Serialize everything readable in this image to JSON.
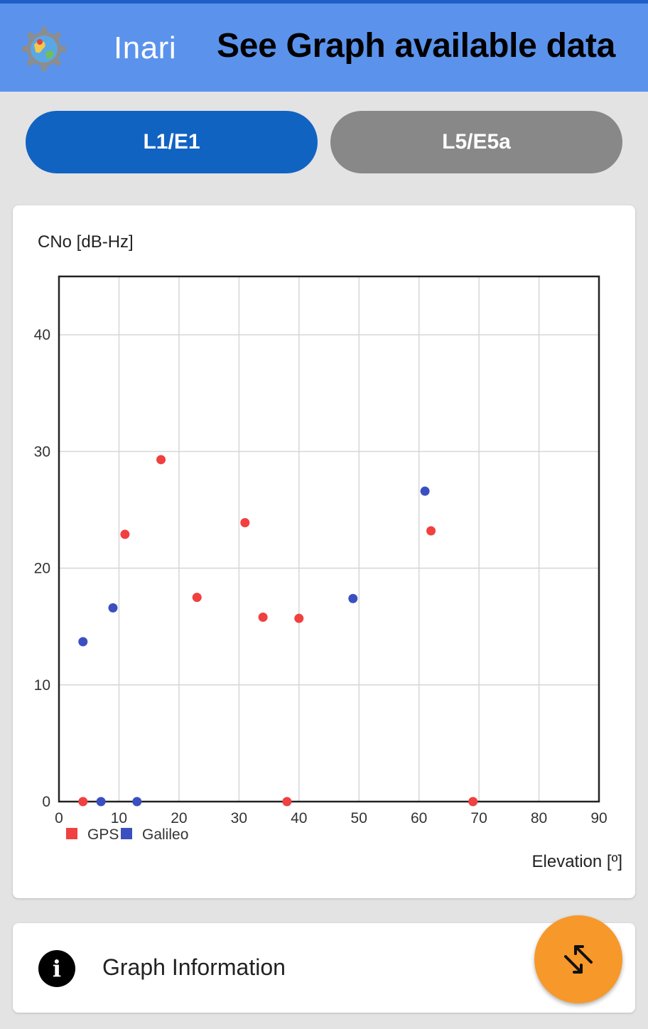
{
  "appbar": {
    "app_name": "Inari",
    "title": "See Graph available data",
    "color": "#5b93ec",
    "app_icon": "app-logo-gear-globe-icon"
  },
  "tabs": [
    {
      "label": "L1/E1",
      "selected": true,
      "color": "#1163c2"
    },
    {
      "label": "L5/E5a",
      "selected": false,
      "color": "#888888"
    }
  ],
  "chart_data": {
    "type": "scatter",
    "title": "",
    "ylabel": "CNo [dB-Hz]",
    "xlabel": "Elevation [º]",
    "xlim": [
      0,
      90
    ],
    "ylim": [
      0,
      45
    ],
    "xticks": [
      0,
      10,
      20,
      30,
      40,
      50,
      60,
      70,
      80,
      90
    ],
    "yticks": [
      0,
      10,
      20,
      30,
      40
    ],
    "grid": true,
    "legend_position": "bottom-left",
    "series": [
      {
        "name": "GPS",
        "color": "#f04040",
        "points": [
          [
            4,
            0
          ],
          [
            11,
            22.9
          ],
          [
            17,
            29.3
          ],
          [
            23,
            17.5
          ],
          [
            31,
            23.9
          ],
          [
            34,
            15.8
          ],
          [
            38,
            0
          ],
          [
            40,
            15.7
          ],
          [
            62,
            23.2
          ],
          [
            69,
            0
          ]
        ]
      },
      {
        "name": "Galileo",
        "color": "#3c4fc0",
        "points": [
          [
            4,
            13.7
          ],
          [
            7,
            0
          ],
          [
            9,
            16.6
          ],
          [
            13,
            0
          ],
          [
            49,
            17.4
          ],
          [
            61,
            26.6
          ]
        ]
      }
    ]
  },
  "info": {
    "label": "Graph Information",
    "icon": "info-icon"
  },
  "fab": {
    "icon": "swap-arrows-icon",
    "color": "#f7982b"
  }
}
